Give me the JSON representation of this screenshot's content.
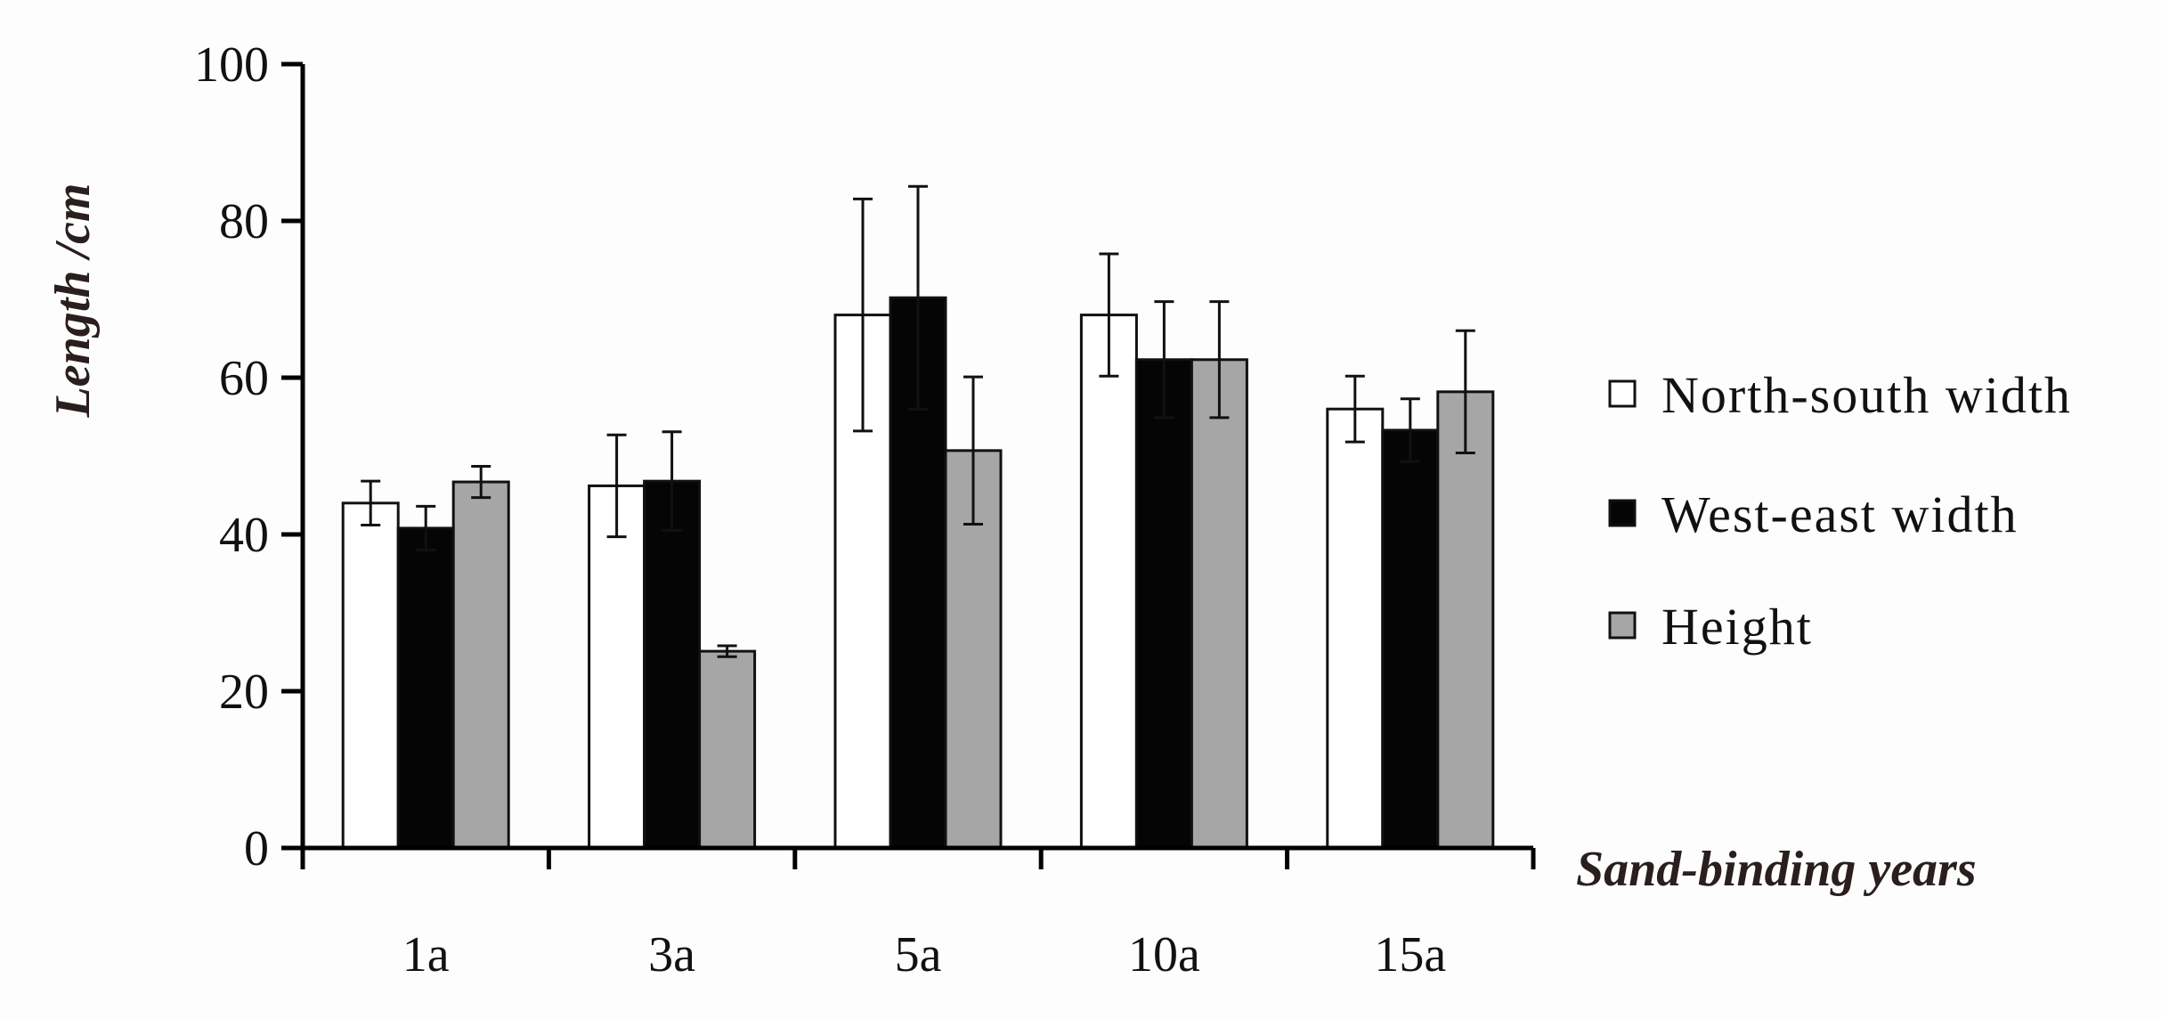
{
  "chart_data": {
    "type": "bar",
    "xlabel": "Sand-binding years",
    "ylabel": "Length /cm",
    "ylim": [
      0,
      100
    ],
    "yticks": [
      0,
      20,
      40,
      60,
      80,
      100
    ],
    "categories": [
      "1a",
      "3a",
      "5a",
      "10a",
      "15a"
    ],
    "grid": false,
    "legend_position": "right",
    "series": [
      {
        "name": "North-south width",
        "color": "#ffffff",
        "values": [
          44,
          46.2,
          68,
          68,
          56
        ],
        "errors": [
          2.8,
          6.5,
          14.8,
          7.8,
          4.2
        ]
      },
      {
        "name": "West-east width",
        "color": "#050505",
        "values": [
          40.8,
          46.8,
          70.2,
          62.3,
          53.3
        ],
        "errors": [
          2.8,
          6.3,
          14.2,
          7.4,
          4.0
        ]
      },
      {
        "name": "Height",
        "color": "#a6a6a6",
        "values": [
          46.7,
          25.1,
          50.7,
          62.3,
          58.2
        ],
        "errors": [
          2.0,
          0.7,
          9.4,
          7.4,
          7.8
        ]
      }
    ]
  }
}
